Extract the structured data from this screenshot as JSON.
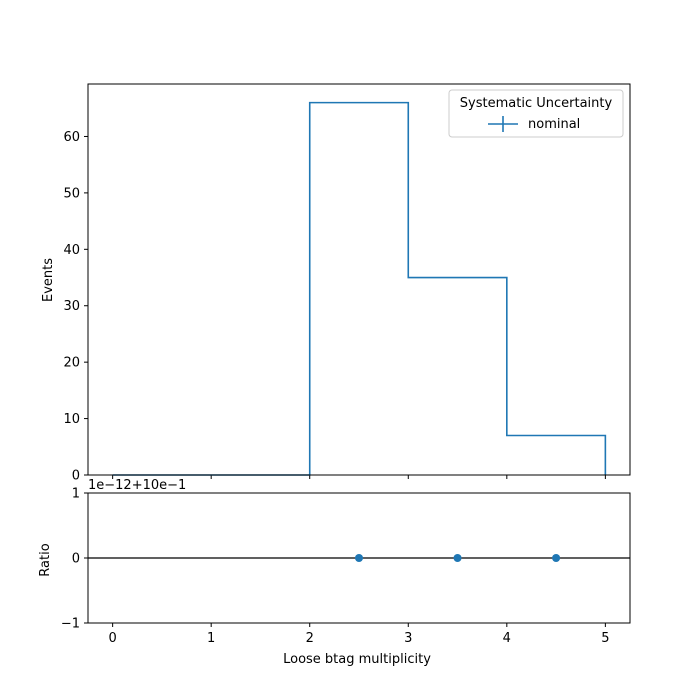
{
  "chart_data": [
    {
      "type": "line",
      "style": "step-histogram",
      "ylabel": "Events",
      "xlim": [
        -0.25,
        5.25
      ],
      "ylim": [
        0,
        69.3
      ],
      "yticks": [
        0,
        10,
        20,
        30,
        40,
        50,
        60
      ],
      "bin_edges": [
        0,
        1,
        2,
        3,
        4,
        5
      ],
      "series": [
        {
          "name": "nominal",
          "values": [
            0,
            0,
            66,
            35,
            7
          ],
          "color": "#1f77b4"
        }
      ],
      "legend": {
        "title": "Systematic Uncertainty",
        "position": "top-right"
      },
      "grid": false
    },
    {
      "type": "scatter",
      "ylabel": "Ratio",
      "xlabel": "Loose btag multiplicity",
      "offset_label": "1e−12+10e−1",
      "xlim": [
        -0.25,
        5.25
      ],
      "ylim": [
        -1,
        1
      ],
      "yticks": [
        -1,
        0,
        1
      ],
      "ytick_labels": [
        "−1",
        "0",
        "1"
      ],
      "xticks": [
        0,
        1,
        2,
        3,
        4,
        5
      ],
      "xtick_labels": [
        "0",
        "1",
        "2",
        "3",
        "4",
        "5"
      ],
      "reference_line": 0,
      "points": [
        {
          "x": 2.5,
          "y": 0
        },
        {
          "x": 3.5,
          "y": 0
        },
        {
          "x": 4.5,
          "y": 0
        }
      ],
      "color": "#1f77b4",
      "grid": false
    }
  ]
}
